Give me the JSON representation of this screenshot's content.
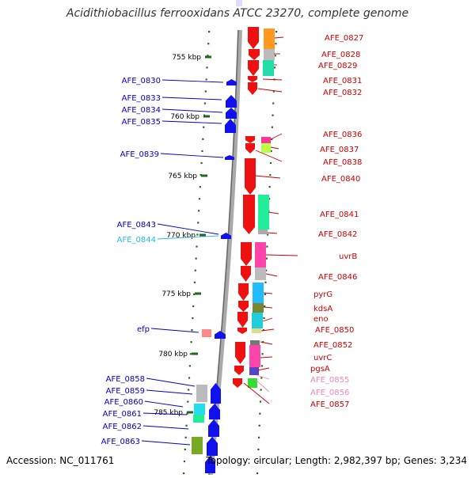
{
  "title": "Acidithiobacillus ferrooxidans ATCC 23270, complete genome",
  "footer": {
    "accession": "Accession: NC_011761",
    "summary": "Topology: circular; Length: 2,982,397 bp; Genes: 3,234"
  },
  "colors": {
    "forward": "#ee1111",
    "reverse": "#1111ee",
    "label_forward": "#cc0000",
    "label_reverse": "#0000cc",
    "label_cyan": "#22bbee",
    "label_pink": "#ee88bb",
    "ruler": "#226622",
    "backbone": "#999999"
  },
  "ruler_ticks": [
    {
      "label": "755 kbp"
    },
    {
      "label": "760 kbp"
    },
    {
      "label": "765 kbp"
    },
    {
      "label": "770 kbp"
    },
    {
      "label": "775 kbp"
    },
    {
      "label": "780 kbp"
    },
    {
      "label": "785 kbp"
    }
  ],
  "genes_right": [
    {
      "label": "AFE_0827",
      "color": "#cc0000"
    },
    {
      "label": "AFE_0828",
      "color": "#cc0000"
    },
    {
      "label": "AFE_0829",
      "color": "#cc0000"
    },
    {
      "label": "AFE_0831",
      "color": "#cc0000"
    },
    {
      "label": "AFE_0832",
      "color": "#cc0000"
    },
    {
      "label": "AFE_0836",
      "color": "#cc0000"
    },
    {
      "label": "AFE_0837",
      "color": "#cc0000"
    },
    {
      "label": "AFE_0838",
      "color": "#cc0000"
    },
    {
      "label": "AFE_0840",
      "color": "#cc0000"
    },
    {
      "label": "AFE_0841",
      "color": "#cc0000"
    },
    {
      "label": "AFE_0842",
      "color": "#cc0000"
    },
    {
      "label": "uvrB",
      "color": "#cc0000"
    },
    {
      "label": "AFE_0846",
      "color": "#cc0000"
    },
    {
      "label": "pyrG",
      "color": "#cc0000"
    },
    {
      "label": "kdsA",
      "color": "#cc0000"
    },
    {
      "label": "eno",
      "color": "#cc0000"
    },
    {
      "label": "AFE_0850",
      "color": "#cc0000"
    },
    {
      "label": "AFE_0852",
      "color": "#cc0000"
    },
    {
      "label": "uvrC",
      "color": "#cc0000"
    },
    {
      "label": "pgsA",
      "color": "#cc0000"
    },
    {
      "label": "AFE_0855",
      "color": "#ee88bb"
    },
    {
      "label": "AFE_0856",
      "color": "#ee88bb"
    },
    {
      "label": "AFE_0857",
      "color": "#cc0000"
    }
  ],
  "genes_left": [
    {
      "label": "AFE_0830",
      "color": "#0000cc"
    },
    {
      "label": "AFE_0833",
      "color": "#0000cc"
    },
    {
      "label": "AFE_0834",
      "color": "#0000cc"
    },
    {
      "label": "AFE_0835",
      "color": "#0000cc"
    },
    {
      "label": "AFE_0839",
      "color": "#0000cc"
    },
    {
      "label": "AFE_0843",
      "color": "#0000cc"
    },
    {
      "label": "AFE_0844",
      "color": "#22bbee"
    },
    {
      "label": "efp",
      "color": "#0000cc"
    },
    {
      "label": "AFE_0858",
      "color": "#0000cc"
    },
    {
      "label": "AFE_0859",
      "color": "#0000cc"
    },
    {
      "label": "AFE_0860",
      "color": "#0000cc"
    },
    {
      "label": "AFE_0861",
      "color": "#0000cc"
    },
    {
      "label": "AFE_0862",
      "color": "#0000cc"
    },
    {
      "label": "AFE_0863",
      "color": "#0000cc"
    }
  ]
}
